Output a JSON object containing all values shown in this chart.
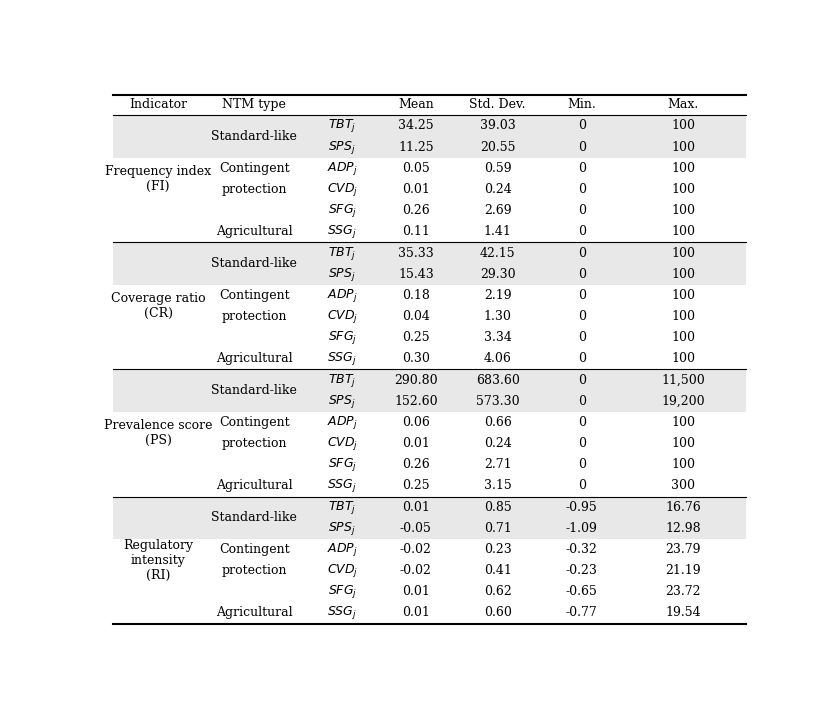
{
  "rows": [
    {
      "indicator": "Frequency index\n(FI)",
      "ntm_type": "Standard-like",
      "symbol": "TBT_j",
      "mean": "34.25",
      "std": "39.03",
      "min": "0",
      "max": "100",
      "shaded": true,
      "ind_start": true
    },
    {
      "indicator": "",
      "ntm_type": "",
      "symbol": "SPS_j",
      "mean": "11.25",
      "std": "20.55",
      "min": "0",
      "max": "100",
      "shaded": true,
      "ind_start": false
    },
    {
      "indicator": "",
      "ntm_type": "Contingent",
      "symbol": "ADP_j",
      "mean": "0.05",
      "std": "0.59",
      "min": "0",
      "max": "100",
      "shaded": false,
      "ind_start": false
    },
    {
      "indicator": "",
      "ntm_type": "protection",
      "symbol": "CVD_j",
      "mean": "0.01",
      "std": "0.24",
      "min": "0",
      "max": "100",
      "shaded": false,
      "ind_start": false
    },
    {
      "indicator": "",
      "ntm_type": "",
      "symbol": "SFG_j",
      "mean": "0.26",
      "std": "2.69",
      "min": "0",
      "max": "100",
      "shaded": false,
      "ind_start": false
    },
    {
      "indicator": "",
      "ntm_type": "Agricultural",
      "symbol": "SSG_j",
      "mean": "0.11",
      "std": "1.41",
      "min": "0",
      "max": "100",
      "shaded": false,
      "ind_start": false
    },
    {
      "indicator": "Coverage ratio\n(CR)",
      "ntm_type": "Standard-like",
      "symbol": "TBT_j",
      "mean": "35.33",
      "std": "42.15",
      "min": "0",
      "max": "100",
      "shaded": true,
      "ind_start": true
    },
    {
      "indicator": "",
      "ntm_type": "",
      "symbol": "SPS_j",
      "mean": "15.43",
      "std": "29.30",
      "min": "0",
      "max": "100",
      "shaded": true,
      "ind_start": false
    },
    {
      "indicator": "",
      "ntm_type": "Contingent",
      "symbol": "ADP_j",
      "mean": "0.18",
      "std": "2.19",
      "min": "0",
      "max": "100",
      "shaded": false,
      "ind_start": false
    },
    {
      "indicator": "",
      "ntm_type": "protection",
      "symbol": "CVD_j",
      "mean": "0.04",
      "std": "1.30",
      "min": "0",
      "max": "100",
      "shaded": false,
      "ind_start": false
    },
    {
      "indicator": "",
      "ntm_type": "",
      "symbol": "SFG_j",
      "mean": "0.25",
      "std": "3.34",
      "min": "0",
      "max": "100",
      "shaded": false,
      "ind_start": false
    },
    {
      "indicator": "",
      "ntm_type": "Agricultural",
      "symbol": "SSG_j",
      "mean": "0.30",
      "std": "4.06",
      "min": "0",
      "max": "100",
      "shaded": false,
      "ind_start": false
    },
    {
      "indicator": "Prevalence score\n(PS)",
      "ntm_type": "Standard-like",
      "symbol": "TBT_j",
      "mean": "290.80",
      "std": "683.60",
      "min": "0",
      "max": "11,500",
      "shaded": true,
      "ind_start": true
    },
    {
      "indicator": "",
      "ntm_type": "",
      "symbol": "SPS_j",
      "mean": "152.60",
      "std": "573.30",
      "min": "0",
      "max": "19,200",
      "shaded": true,
      "ind_start": false
    },
    {
      "indicator": "",
      "ntm_type": "Contingent",
      "symbol": "ADP_j",
      "mean": "0.06",
      "std": "0.66",
      "min": "0",
      "max": "100",
      "shaded": false,
      "ind_start": false
    },
    {
      "indicator": "",
      "ntm_type": "protection",
      "symbol": "CVD_j",
      "mean": "0.01",
      "std": "0.24",
      "min": "0",
      "max": "100",
      "shaded": false,
      "ind_start": false
    },
    {
      "indicator": "",
      "ntm_type": "",
      "symbol": "SFG_j",
      "mean": "0.26",
      "std": "2.71",
      "min": "0",
      "max": "100",
      "shaded": false,
      "ind_start": false
    },
    {
      "indicator": "",
      "ntm_type": "Agricultural",
      "symbol": "SSG_j",
      "mean": "0.25",
      "std": "3.15",
      "min": "0",
      "max": "300",
      "shaded": false,
      "ind_start": false
    },
    {
      "indicator": "Regulatory\nintensity\n(RI)",
      "ntm_type": "Standard-like",
      "symbol": "TBT_j",
      "mean": "0.01",
      "std": "0.85",
      "min": "-0.95",
      "max": "16.76",
      "shaded": true,
      "ind_start": true
    },
    {
      "indicator": "",
      "ntm_type": "",
      "symbol": "SPS_j",
      "mean": "-0.05",
      "std": "0.71",
      "min": "-1.09",
      "max": "12.98",
      "shaded": true,
      "ind_start": false
    },
    {
      "indicator": "",
      "ntm_type": "Contingent",
      "symbol": "ADP_j",
      "mean": "-0.02",
      "std": "0.23",
      "min": "-0.32",
      "max": "23.79",
      "shaded": false,
      "ind_start": false
    },
    {
      "indicator": "",
      "ntm_type": "protection",
      "symbol": "CVD_j",
      "mean": "-0.02",
      "std": "0.41",
      "min": "-0.23",
      "max": "21.19",
      "shaded": false,
      "ind_start": false
    },
    {
      "indicator": "",
      "ntm_type": "",
      "symbol": "SFG_j",
      "mean": "0.01",
      "std": "0.62",
      "min": "-0.65",
      "max": "23.72",
      "shaded": false,
      "ind_start": false
    },
    {
      "indicator": "",
      "ntm_type": "Agricultural",
      "symbol": "SSG_j",
      "mean": "0.01",
      "std": "0.60",
      "min": "-0.77",
      "max": "19.54",
      "shaded": false,
      "ind_start": false
    }
  ],
  "shaded_color": "#e8e8e8",
  "white_color": "#ffffff",
  "section_starts": [
    0,
    6,
    12,
    18
  ],
  "indicator_labels": [
    "Frequency index\n(FI)",
    "Coverage ratio\n(CR)",
    "Prevalence score\n(PS)",
    "Regulatory\nintensity\n(RI)"
  ],
  "indicator_spans": [
    6,
    6,
    6,
    6
  ],
  "font_size": 9.0
}
